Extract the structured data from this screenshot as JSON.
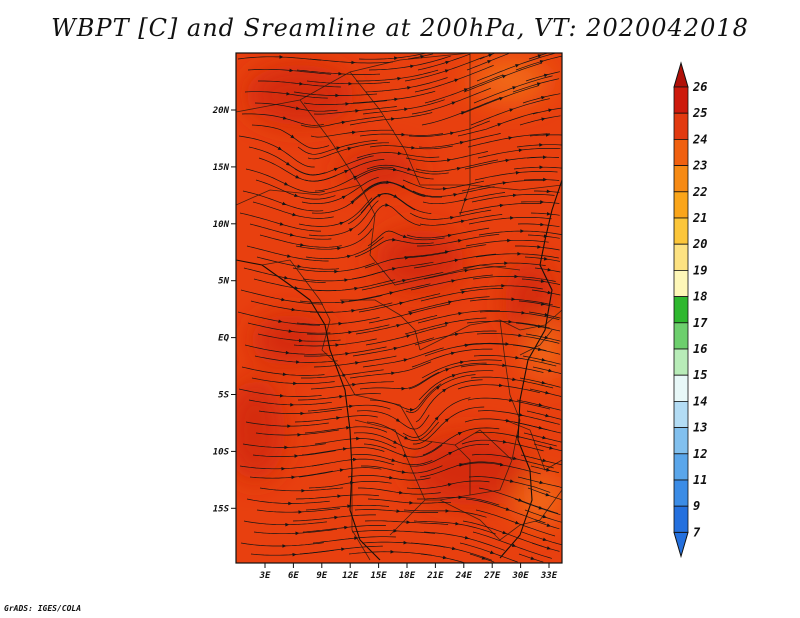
{
  "title": "WBPT [C] and Sreamline at 200hPa, VT: 2020042018",
  "credit": "GrADS: IGES/COLA",
  "map": {
    "lat_labels": [
      "20N",
      "15N",
      "10N",
      "5N",
      "EQ",
      "5S",
      "10S",
      "15S"
    ],
    "lon_labels": [
      "3E",
      "6E",
      "9E",
      "12E",
      "15E",
      "18E",
      "21E",
      "24E",
      "27E",
      "30E",
      "33E"
    ],
    "background_color": "#e8400f",
    "warm_color": "#d42c0c",
    "hot_color": "#f26b12"
  },
  "colorbar": {
    "labels": [
      "26",
      "25",
      "24",
      "23",
      "22",
      "21",
      "20",
      "19",
      "18",
      "17",
      "16",
      "15",
      "14",
      "13",
      "12",
      "11",
      "9",
      "7"
    ],
    "colors": [
      "#b01008",
      "#cd1a0c",
      "#e23a10",
      "#f0600f",
      "#f68a14",
      "#faa51a",
      "#fcc63a",
      "#fde282",
      "#fef7b8",
      "#2eb82e",
      "#6dcf6d",
      "#b8ecb8",
      "#e8f8f8",
      "#b3dcf4",
      "#82c0ee",
      "#5aa6ea",
      "#3b8ce6",
      "#2470de"
    ]
  }
}
